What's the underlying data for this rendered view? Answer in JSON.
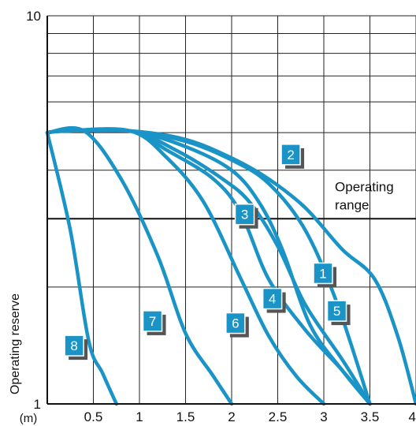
{
  "chart_data": {
    "type": "line",
    "xlabel": "",
    "x_unit": "(m)",
    "ylabel": "Operating reserve",
    "y_scale": "log",
    "xlim": [
      0,
      4
    ],
    "ylim": [
      1,
      10
    ],
    "grid": true,
    "x_ticks": [
      "0.5",
      "1",
      "1.5",
      "2",
      "2.5",
      "3",
      "3.5",
      "4"
    ],
    "x_tick_values": [
      0.5,
      1,
      1.5,
      2,
      2.5,
      3,
      3.5,
      4
    ],
    "y_ticks": [
      "1",
      "10"
    ],
    "y_tick_values": [
      1,
      10
    ],
    "threshold": {
      "y": 3,
      "label_line1": "Operating",
      "label_line2": "range"
    },
    "line_color": "#1a94c6",
    "badge_color": "#1a94c6",
    "series": [
      {
        "name": "1",
        "x": [
          0,
          0.2,
          0.9,
          1.5,
          2.0,
          2.4,
          2.8,
          3.2,
          3.55,
          3.8,
          4.0
        ],
        "y": [
          5.0,
          5.05,
          5.05,
          4.8,
          4.3,
          3.8,
          3.2,
          2.5,
          2.1,
          1.5,
          1.0
        ],
        "badge": [
          3.0,
          2.15
        ]
      },
      {
        "name": "2",
        "x": [
          0,
          0.2,
          0.9,
          1.5,
          2.0,
          2.4,
          2.8,
          3.15,
          3.5
        ],
        "y": [
          5.0,
          5.05,
          5.05,
          4.75,
          4.25,
          3.7,
          2.8,
          1.8,
          1.0
        ],
        "badge": [
          2.65,
          4.35
        ]
      },
      {
        "name": "3",
        "x": [
          0,
          0.2,
          0.9,
          1.4,
          1.9,
          2.2,
          2.5,
          2.8,
          3.2,
          3.5
        ],
        "y": [
          5.0,
          5.05,
          5.05,
          4.5,
          3.8,
          3.3,
          2.55,
          1.8,
          1.3,
          1.0
        ],
        "badge": [
          2.15,
          3.05
        ]
      },
      {
        "name": "4",
        "x": [
          0,
          0.2,
          0.9,
          1.3,
          1.8,
          2.1,
          2.4,
          2.8,
          3.2,
          3.5
        ],
        "y": [
          5.0,
          5.05,
          5.05,
          4.5,
          3.8,
          3.1,
          2.1,
          1.55,
          1.22,
          1.0
        ],
        "badge": [
          2.45,
          1.85
        ]
      },
      {
        "name": "5",
        "x": [
          0,
          0.2,
          0.9,
          1.5,
          2.0,
          2.3,
          2.55,
          2.85,
          3.2,
          3.5
        ],
        "y": [
          5.0,
          5.05,
          5.05,
          4.6,
          4.0,
          3.3,
          2.5,
          1.6,
          1.22,
          1.0
        ],
        "badge": [
          3.15,
          1.72
        ]
      },
      {
        "name": "6",
        "x": [
          0,
          0.2,
          0.9,
          1.3,
          1.7,
          2.1,
          2.4,
          2.7,
          3.0
        ],
        "y": [
          5.0,
          5.05,
          5.05,
          4.3,
          3.3,
          2.1,
          1.5,
          1.18,
          1.0
        ],
        "badge": [
          2.05,
          1.6
        ]
      },
      {
        "name": "7",
        "x": [
          0,
          0.4,
          0.8,
          1.2,
          1.5,
          1.8,
          2.0
        ],
        "y": [
          5.0,
          5.05,
          3.8,
          2.4,
          1.52,
          1.18,
          1.0
        ],
        "badge": [
          1.15,
          1.62
        ]
      },
      {
        "name": "8",
        "x": [
          0,
          0.25,
          0.45,
          0.6,
          0.75
        ],
        "y": [
          5.0,
          2.8,
          1.45,
          1.2,
          1.0
        ],
        "badge": [
          0.3,
          1.4
        ]
      }
    ]
  }
}
